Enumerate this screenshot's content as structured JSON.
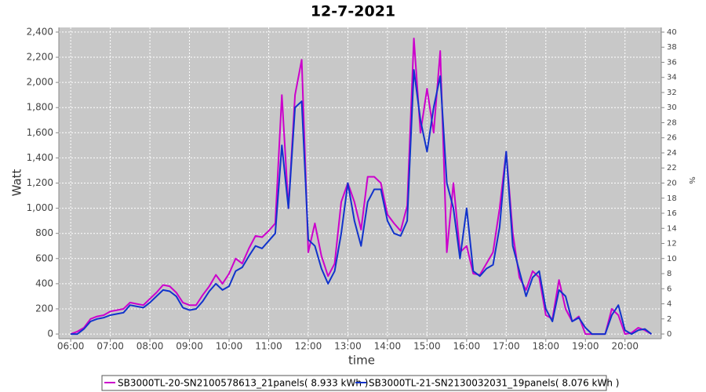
{
  "chart_data": {
    "type": "line",
    "title": "12-7-2021",
    "x_label": "time",
    "y_label": "Watt",
    "y2_label": "%",
    "x": [
      360,
      370,
      380,
      390,
      400,
      410,
      420,
      430,
      440,
      450,
      460,
      470,
      480,
      490,
      500,
      510,
      520,
      530,
      540,
      550,
      560,
      570,
      580,
      590,
      600,
      610,
      620,
      630,
      640,
      650,
      660,
      670,
      680,
      690,
      700,
      710,
      720,
      730,
      740,
      750,
      760,
      770,
      780,
      790,
      800,
      810,
      820,
      830,
      840,
      850,
      860,
      870,
      880,
      890,
      900,
      910,
      920,
      930,
      940,
      950,
      960,
      970,
      980,
      990,
      1000,
      1010,
      1020,
      1030,
      1040,
      1050,
      1060,
      1070,
      1080,
      1090,
      1100,
      1110,
      1120,
      1130,
      1140,
      1150,
      1160,
      1170,
      1180,
      1190,
      1200,
      1210,
      1220,
      1230,
      1240
    ],
    "xlim": [
      342,
      1255
    ],
    "xticks": [
      {
        "value": 360,
        "label": "06:00"
      },
      {
        "value": 420,
        "label": "07:00"
      },
      {
        "value": 480,
        "label": "08:00"
      },
      {
        "value": 540,
        "label": "09:00"
      },
      {
        "value": 600,
        "label": "10:00"
      },
      {
        "value": 660,
        "label": "11:00"
      },
      {
        "value": 720,
        "label": "12:00"
      },
      {
        "value": 780,
        "label": "13:00"
      },
      {
        "value": 840,
        "label": "14:00"
      },
      {
        "value": 900,
        "label": "15:00"
      },
      {
        "value": 960,
        "label": "16:00"
      },
      {
        "value": 1020,
        "label": "17:00"
      },
      {
        "value": 1080,
        "label": "18:00"
      },
      {
        "value": 1140,
        "label": "19:00"
      },
      {
        "value": 1200,
        "label": "20:00"
      }
    ],
    "ylim": [
      -37,
      2437
    ],
    "yticks": [
      0,
      200,
      400,
      600,
      800,
      {
        "value": 1000,
        "label": "1,000"
      },
      {
        "value": 1200,
        "label": "1,200"
      },
      {
        "value": 1400,
        "label": "1,400"
      },
      {
        "value": 1600,
        "label": "1,600"
      },
      {
        "value": 1800,
        "label": "1,800"
      },
      {
        "value": 2000,
        "label": "2,000"
      },
      {
        "value": 2200,
        "label": "2,200"
      },
      {
        "value": 2400,
        "label": "2,400"
      }
    ],
    "y2lim": [
      -0.62,
      40.62
    ],
    "y2ticks": [
      0,
      2,
      4,
      6,
      8,
      10,
      12,
      14,
      16,
      18,
      20,
      22,
      24,
      26,
      28,
      30,
      32,
      34,
      36,
      38,
      40
    ],
    "grid": true,
    "legend": "bottom",
    "series": [
      {
        "name": "SB3000TL-20-SN2100578613_21panels( 8.933 kWh )",
        "color": "#cc00cc",
        "values": [
          0,
          20,
          50,
          120,
          140,
          150,
          180,
          190,
          200,
          250,
          240,
          230,
          280,
          330,
          390,
          380,
          330,
          250,
          230,
          230,
          310,
          380,
          470,
          400,
          480,
          600,
          560,
          680,
          780,
          770,
          820,
          880,
          1900,
          1000,
          1900,
          2180,
          650,
          880,
          620,
          460,
          560,
          1050,
          1200,
          1050,
          830,
          1250,
          1250,
          1200,
          950,
          880,
          820,
          1020,
          2350,
          1600,
          1950,
          1600,
          2250,
          650,
          1200,
          650,
          700,
          480,
          470,
          560,
          650,
          1000,
          1450,
          800,
          450,
          350,
          500,
          450,
          150,
          120,
          430,
          200,
          100,
          140,
          0,
          0,
          0,
          0,
          200,
          150,
          0,
          10,
          50,
          30,
          0
        ]
      },
      {
        "name": "SB3000TL-21-SN2130032031_19panels( 8.076 kWh )",
        "color": "#1133cc",
        "values": [
          0,
          0,
          40,
          100,
          120,
          130,
          150,
          160,
          170,
          230,
          220,
          210,
          250,
          300,
          350,
          340,
          300,
          210,
          190,
          200,
          260,
          340,
          400,
          350,
          380,
          500,
          530,
          620,
          700,
          680,
          740,
          800,
          1500,
          1000,
          1800,
          1850,
          750,
          700,
          520,
          400,
          500,
          800,
          1200,
          900,
          700,
          1050,
          1150,
          1150,
          900,
          800,
          780,
          900,
          2100,
          1700,
          1450,
          1800,
          2050,
          1200,
          1000,
          600,
          1000,
          500,
          460,
          520,
          550,
          850,
          1450,
          700,
          500,
          300,
          450,
          500,
          200,
          100,
          350,
          300,
          100,
          130,
          50,
          0,
          0,
          0,
          150,
          230,
          30,
          0,
          30,
          40,
          0
        ]
      }
    ]
  }
}
